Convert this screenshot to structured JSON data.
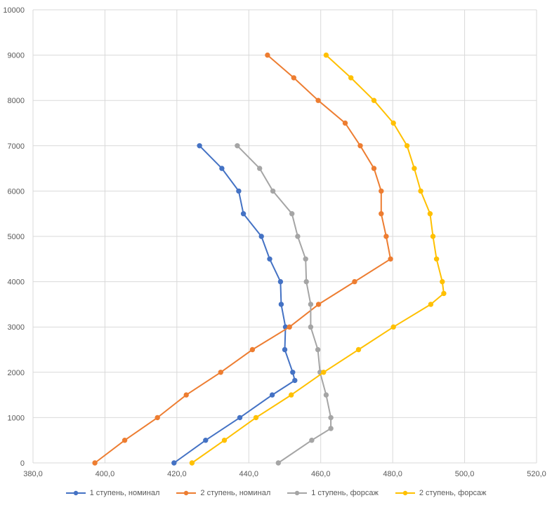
{
  "chart_data": {
    "type": "scatter",
    "xlim": [
      380,
      520
    ],
    "ylim": [
      0,
      10000
    ],
    "x_ticks": [
      "380,0",
      "400,0",
      "420,0",
      "440,0",
      "460,0",
      "480,0",
      "500,0",
      "520,0"
    ],
    "y_ticks": [
      "0",
      "1000",
      "2000",
      "3000",
      "4000",
      "5000",
      "6000",
      "7000",
      "8000",
      "9000",
      "10000"
    ],
    "grid": true,
    "legend_position": "bottom",
    "series": [
      {
        "name": "1 ступень, номинал",
        "color": "#4472C4",
        "points": [
          [
            419.2,
            0
          ],
          [
            428.0,
            500
          ],
          [
            437.5,
            1000
          ],
          [
            446.5,
            1500
          ],
          [
            452.8,
            1820
          ],
          [
            452.2,
            2000
          ],
          [
            450.0,
            2500
          ],
          [
            450.2,
            3000
          ],
          [
            449.0,
            3500
          ],
          [
            448.8,
            4000
          ],
          [
            445.8,
            4500
          ],
          [
            443.5,
            5000
          ],
          [
            438.5,
            5500
          ],
          [
            437.2,
            6000
          ],
          [
            432.5,
            6500
          ],
          [
            426.3,
            7000
          ]
        ]
      },
      {
        "name": "2 ступень, номинал",
        "color": "#ED7D31",
        "points": [
          [
            397.2,
            0
          ],
          [
            405.5,
            500
          ],
          [
            414.6,
            1000
          ],
          [
            422.6,
            1500
          ],
          [
            432.2,
            2000
          ],
          [
            441.0,
            2500
          ],
          [
            451.3,
            3000
          ],
          [
            459.4,
            3500
          ],
          [
            469.4,
            4000
          ],
          [
            479.4,
            4500
          ],
          [
            478.2,
            5000
          ],
          [
            476.8,
            5500
          ],
          [
            476.8,
            6000
          ],
          [
            474.8,
            6500
          ],
          [
            471.0,
            7000
          ],
          [
            466.8,
            7500
          ],
          [
            459.3,
            8000
          ],
          [
            452.5,
            8500
          ],
          [
            445.2,
            9000
          ]
        ]
      },
      {
        "name": "1 ступень, форсаж",
        "color": "#A5A5A5",
        "points": [
          [
            448.2,
            0
          ],
          [
            457.5,
            500
          ],
          [
            462.8,
            760
          ],
          [
            462.8,
            1000
          ],
          [
            461.5,
            1500
          ],
          [
            459.8,
            2000
          ],
          [
            459.2,
            2500
          ],
          [
            457.2,
            3000
          ],
          [
            457.2,
            3500
          ],
          [
            456.0,
            4000
          ],
          [
            455.8,
            4500
          ],
          [
            453.6,
            5000
          ],
          [
            452.0,
            5500
          ],
          [
            446.7,
            6000
          ],
          [
            443.0,
            6500
          ],
          [
            436.8,
            7000
          ]
        ]
      },
      {
        "name": "2 ступень, форсаж",
        "color": "#FFC000",
        "points": [
          [
            424.2,
            0
          ],
          [
            433.2,
            500
          ],
          [
            442.0,
            1000
          ],
          [
            451.8,
            1500
          ],
          [
            460.8,
            2000
          ],
          [
            470.5,
            2500
          ],
          [
            480.2,
            3000
          ],
          [
            490.6,
            3500
          ],
          [
            494.2,
            3740
          ],
          [
            493.8,
            4000
          ],
          [
            492.2,
            4500
          ],
          [
            491.2,
            5000
          ],
          [
            490.4,
            5500
          ],
          [
            487.8,
            6000
          ],
          [
            486.0,
            6500
          ],
          [
            484.0,
            7000
          ],
          [
            480.2,
            7500
          ],
          [
            474.8,
            8000
          ],
          [
            468.4,
            8500
          ],
          [
            461.5,
            9000
          ]
        ]
      }
    ]
  }
}
